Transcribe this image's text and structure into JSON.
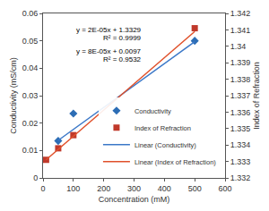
{
  "chart_data": {
    "type": "scatter",
    "x_label": "Concentration (mM)",
    "y_label": "Conductivity (mS/cm)",
    "y2_label": "Index of Refraction",
    "xlim": [
      0,
      600
    ],
    "xticks": [
      0,
      100,
      200,
      300,
      400,
      500,
      600
    ],
    "ylim": [
      0,
      0.06
    ],
    "yticks": [
      0,
      0.01,
      0.02,
      0.03,
      0.04,
      0.05,
      0.06
    ],
    "y2lim": [
      1.332,
      1.342
    ],
    "y2ticks": [
      1.332,
      1.333,
      1.334,
      1.335,
      1.336,
      1.337,
      1.338,
      1.339,
      1.34,
      1.341,
      1.342
    ],
    "grid": false,
    "legend": "lower right",
    "annotations": [
      "y = 2E-05x + 1.3329",
      "R² = 0.9999",
      "y = 8E-05x + 0.0097",
      "R² = 0.9532"
    ],
    "series": [
      {
        "name": "Conductivity",
        "type": "scatter",
        "marker": "diamond",
        "color": "#2c6db5",
        "x": [
          50,
          100,
          500
        ],
        "values": [
          0.0135,
          0.0235,
          0.05
        ]
      },
      {
        "name": "Index of Refraction",
        "type": "scatter",
        "marker": "square",
        "color": "#c0392b",
        "axis": "y2",
        "x": [
          10,
          50,
          100,
          500
        ],
        "values": [
          1.3331,
          1.3338,
          1.3346,
          1.3411
        ]
      },
      {
        "name": "Linear (Conductivity)",
        "type": "line",
        "line_style": "solid",
        "color": "#3b78c8",
        "x": [
          50,
          500
        ],
        "values": [
          0.0137,
          0.0497
        ]
      },
      {
        "name": "Linear (Index of Refraction)",
        "type": "line",
        "line_style": "solid",
        "color": "#e0502a",
        "axis": "y2",
        "x": [
          10,
          500
        ],
        "values": [
          1.3331,
          1.3409
        ]
      }
    ]
  }
}
